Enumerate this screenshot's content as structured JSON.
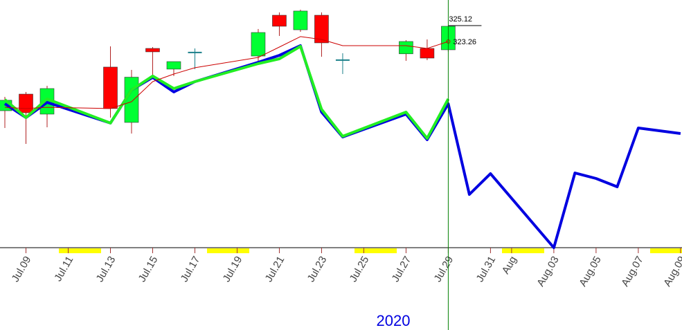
{
  "chart_data": {
    "type": "candlestick",
    "xlim": [
      7.77,
      40.07
    ],
    "ylim": [
      299.16,
      328.11
    ],
    "xticks": [
      {
        "value": 9,
        "label": "Jul.09"
      },
      {
        "value": 11,
        "label": "Jul.11"
      },
      {
        "value": 13,
        "label": "Jul.13"
      },
      {
        "value": 15,
        "label": "Jul.15"
      },
      {
        "value": 17,
        "label": "Jul.17"
      },
      {
        "value": 19,
        "label": "Jul.19"
      },
      {
        "value": 21,
        "label": "Jul.21"
      },
      {
        "value": 23,
        "label": "Jul.23"
      },
      {
        "value": 25,
        "label": "Jul.25"
      },
      {
        "value": 27,
        "label": "Jul.27"
      },
      {
        "value": 29,
        "label": "Jul.29"
      },
      {
        "value": 31,
        "label": "Jul.31"
      },
      {
        "value": 32,
        "label": "Aug"
      },
      {
        "value": 34,
        "label": "Aug.03"
      },
      {
        "value": 36,
        "label": "Aug.05"
      },
      {
        "value": 38,
        "label": "Aug.07"
      },
      {
        "value": 40,
        "label": "Aug.09"
      }
    ],
    "x_axis_label": "2020",
    "cursor": 29,
    "candles": {
      "x": [
        8,
        9,
        10,
        13,
        14,
        15,
        16,
        17,
        20,
        21,
        22,
        23,
        24,
        27,
        28,
        29
      ],
      "open": [
        315.17,
        317.11,
        314.77,
        320.27,
        313.8,
        322.45,
        320.03,
        321.97,
        321.56,
        326.33,
        324.63,
        326.33,
        321.08,
        321.82,
        322.45,
        322.29
      ],
      "high": [
        316.79,
        317.36,
        318.08,
        322.69,
        319.94,
        322.61,
        320.91,
        322.45,
        324.72,
        326.66,
        326.98,
        326.66,
        321.89,
        323.42,
        323.5,
        325.12
      ],
      "low": [
        313.15,
        311.29,
        313.23,
        314.36,
        312.5,
        319.22,
        319.22,
        320.03,
        320.83,
        323.91,
        324.39,
        321.48,
        319.46,
        321.0,
        321.08,
        322.05
      ],
      "close": [
        316.39,
        314.93,
        317.76,
        315.42,
        319.09,
        322.05,
        320.91,
        321.97,
        324.31,
        325.04,
        326.82,
        323.1,
        321.08,
        323.26,
        321.32,
        325.04
      ],
      "up_color": "#00ff33",
      "down_color": "#ff0000",
      "flat_color": "#1a7f8a"
    },
    "series": [
      {
        "color": "#0000e0",
        "width": 4,
        "x": [
          8,
          9,
          10,
          13,
          14,
          15,
          16,
          17,
          20,
          21,
          22,
          23,
          24,
          27,
          28,
          29,
          30,
          31,
          34,
          35,
          36,
          37,
          38,
          40
        ],
        "values": [
          315.98,
          314.36,
          316.14,
          313.72,
          317.6,
          319.06,
          317.36,
          318.57,
          320.83,
          321.64,
          322.77,
          315.01,
          312.1,
          314.77,
          311.78,
          315.98,
          305.39,
          307.81,
          299.16,
          307.89,
          307.25,
          306.28,
          313.15,
          312.5
        ]
      },
      {
        "color": "#22ee22",
        "width": 4,
        "x": [
          8,
          9,
          10,
          13,
          14,
          15,
          16,
          17,
          20,
          21,
          22,
          23,
          24,
          27,
          28,
          29
        ],
        "values": [
          316.47,
          314.36,
          316.55,
          313.72,
          317.6,
          319.22,
          317.76,
          318.57,
          320.67,
          321.24,
          322.69,
          315.33,
          312.18,
          315.01,
          311.94,
          316.55
        ]
      },
      {
        "color": "#cc0000",
        "width": 1,
        "x": [
          8,
          9,
          10,
          13,
          14,
          15,
          16,
          17,
          20,
          21,
          22,
          23,
          24,
          27,
          28,
          29
        ],
        "values": [
          315.57,
          315.42,
          315.57,
          315.42,
          316.22,
          318.57,
          319.46,
          320.19,
          321.4,
          322.61,
          323.83,
          323.5,
          322.77,
          322.77,
          322.45,
          323.26
        ]
      }
    ]
  }
}
